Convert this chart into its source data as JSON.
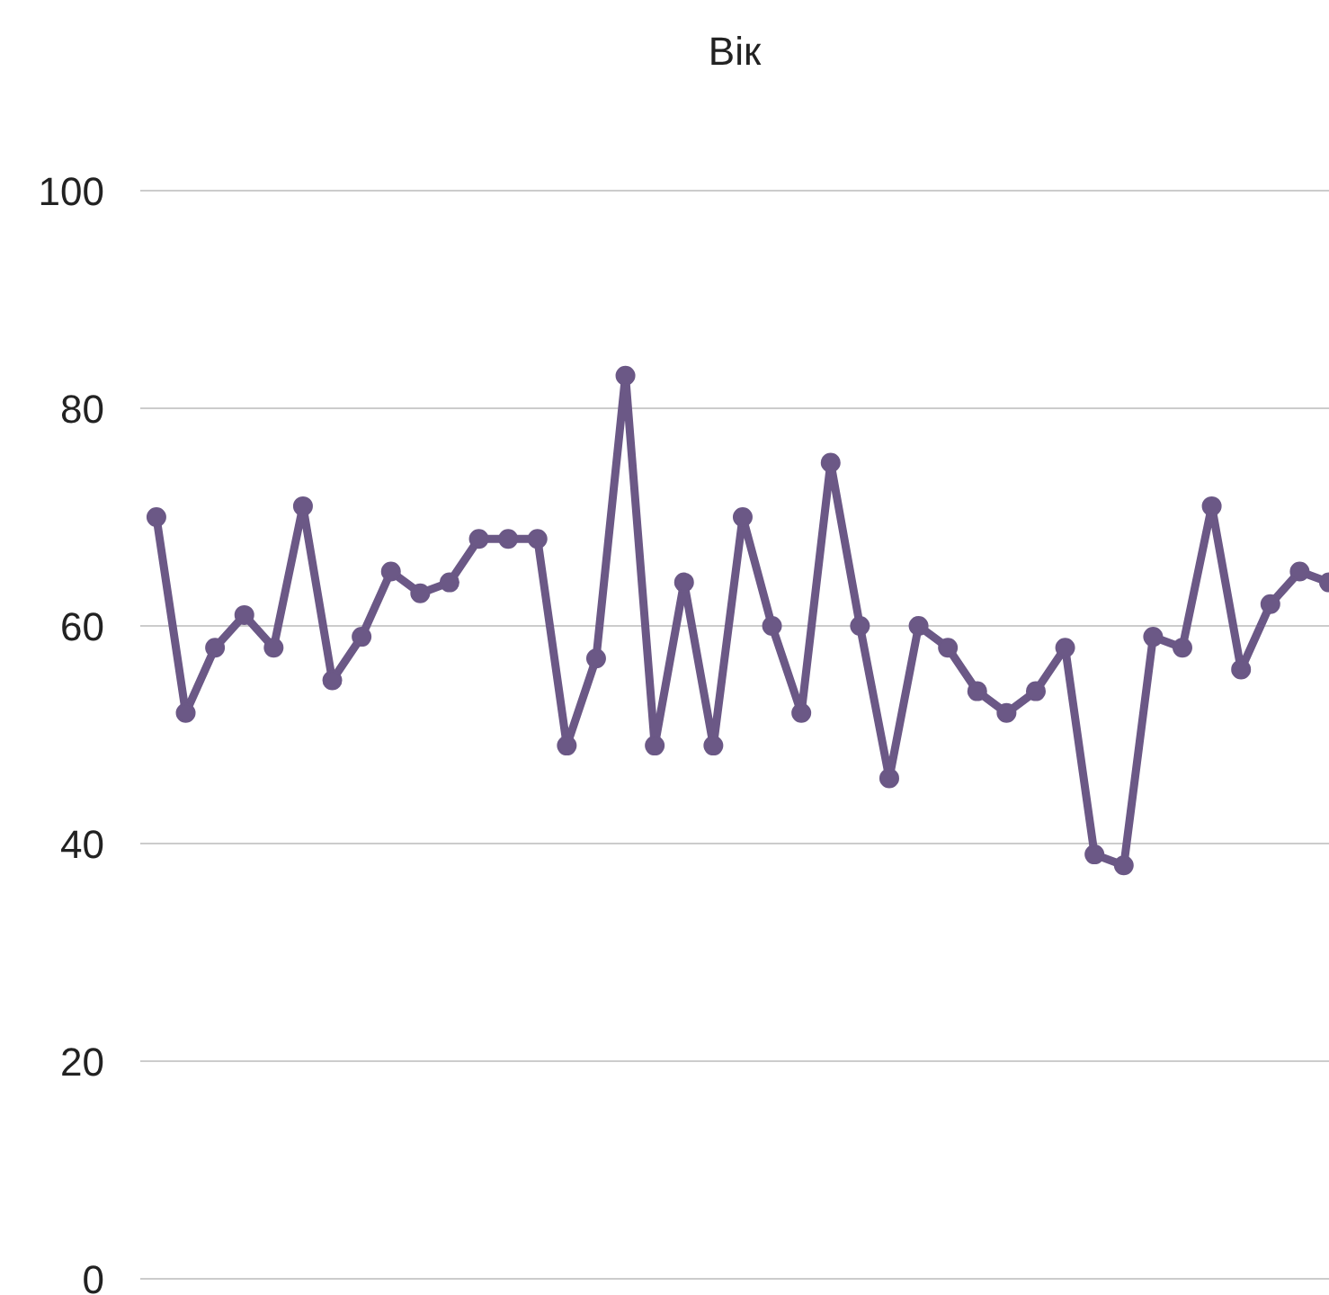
{
  "chart_data": {
    "type": "line",
    "title": "Вік",
    "categories": [
      null,
      null,
      null,
      null,
      null,
      null,
      null,
      null,
      null,
      null,
      null,
      null,
      null,
      null,
      null,
      null,
      null,
      null,
      null,
      null,
      null,
      null,
      null,
      null,
      null,
      null,
      null,
      null,
      null,
      null,
      null,
      null,
      null,
      null,
      null,
      null,
      null,
      null,
      null,
      null,
      null
    ],
    "series": [
      {
        "color": "#6b5886",
        "values": [
          70,
          52,
          58,
          61,
          58,
          71,
          55,
          59,
          65,
          63,
          64,
          68,
          68,
          68,
          49,
          57,
          83,
          49,
          64,
          49,
          70,
          60,
          52,
          75,
          60,
          46,
          60,
          58,
          54,
          52,
          54,
          58,
          39,
          38,
          59,
          58,
          71,
          56,
          62,
          65,
          64
        ]
      }
    ],
    "ylim": [
      0,
      100
    ],
    "yticks": [
      0,
      20,
      40,
      60,
      80,
      100
    ],
    "grid": "y",
    "marker": "circle",
    "line_style": "solid"
  }
}
